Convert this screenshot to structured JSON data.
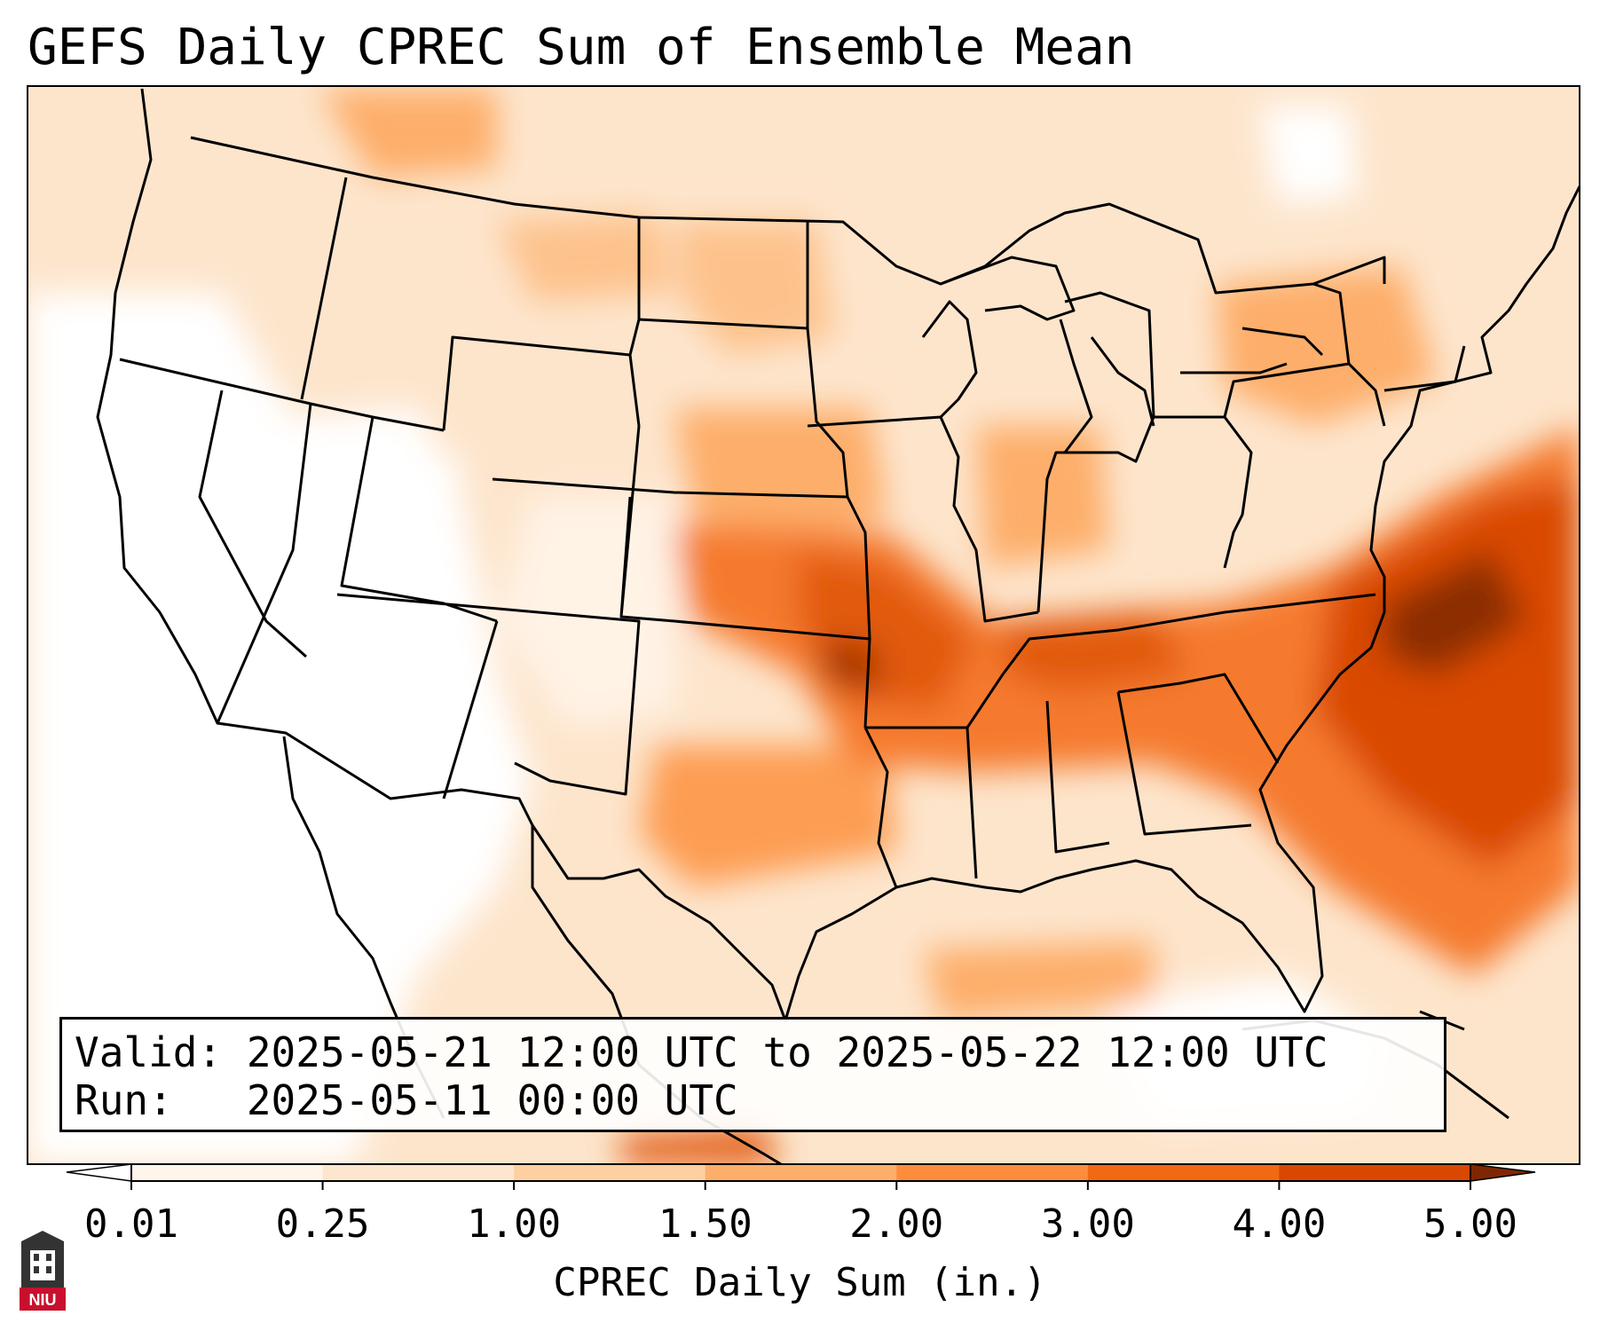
{
  "title": "GEFS Daily CPREC Sum of Ensemble Mean",
  "info": {
    "valid_line": "Valid: 2025-05-21 12:00 UTC to 2025-05-22 12:00 UTC",
    "run_line": "Run:   2025-05-11 00:00 UTC"
  },
  "colorbar": {
    "label": "CPREC Daily Sum (in.)",
    "ticks": [
      "0.01",
      "0.25",
      "1.00",
      "1.50",
      "2.00",
      "3.00",
      "4.00",
      "5.00"
    ],
    "colors": [
      "#fff5eb",
      "#fee6ce",
      "#fdd0a2",
      "#fdae6b",
      "#fd8d3c",
      "#f16913",
      "#d94801",
      "#8c2d04"
    ],
    "under_color": "#ffffff",
    "over_color": "#7f2704"
  },
  "logo": {
    "text": "NIU",
    "colors": {
      "seal": "#333333",
      "banner": "#c8102e"
    }
  }
}
